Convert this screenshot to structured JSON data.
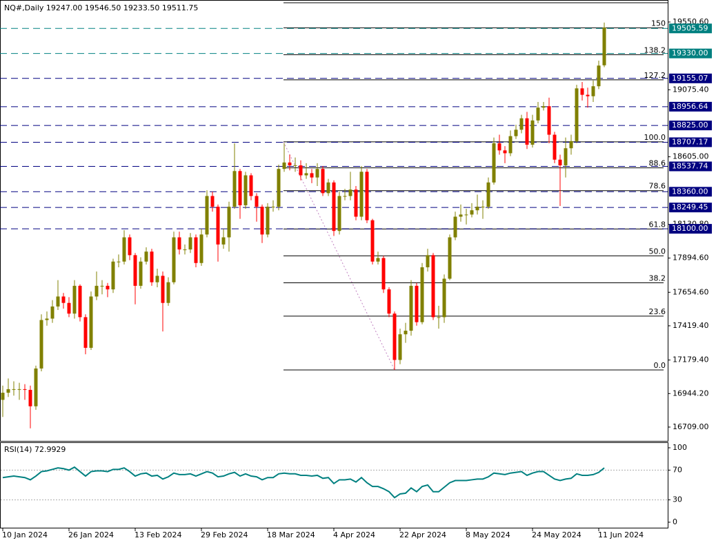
{
  "chart_data": [
    {
      "type": "candlestick",
      "title": "NQ#,Daily  19247.00 19546.50 19233.50 19511.75",
      "categories": [
        "10 Jan 2024",
        null,
        null,
        null,
        null,
        null,
        null,
        null,
        null,
        null,
        null,
        null,
        "26 Jan 2024",
        null,
        null,
        null,
        null,
        null,
        null,
        null,
        null,
        null,
        null,
        null,
        "13 Feb 2024",
        null,
        null,
        null,
        null,
        null,
        null,
        null,
        null,
        null,
        null,
        null,
        "29 Feb 2024",
        null,
        null,
        null,
        null,
        null,
        null,
        null,
        null,
        null,
        null,
        null,
        "18 Mar 2024",
        null,
        null,
        null,
        null,
        null,
        null,
        null,
        null,
        null,
        null,
        null,
        "4 Apr 2024",
        null,
        null,
        null,
        null,
        null,
        null,
        null,
        null,
        null,
        null,
        null,
        "22 Apr 2024",
        null,
        null,
        null,
        null,
        null,
        null,
        null,
        null,
        null,
        null,
        null,
        "8 May 2024",
        null,
        null,
        null,
        null,
        null,
        null,
        null,
        null,
        null,
        null,
        null,
        "24 May 2024",
        null,
        null,
        null,
        null,
        null,
        null,
        null,
        null,
        null,
        null,
        null,
        "11 Jun 2024",
        null
      ],
      "open": [
        16900,
        16950,
        16975,
        16975,
        16975,
        16970,
        16855,
        17120,
        17460,
        17470,
        17555,
        17625,
        17580,
        17505,
        17700,
        17480,
        17265,
        17625,
        17700,
        17700,
        17675,
        17870,
        17870,
        18040,
        17915,
        17700,
        17870,
        17940,
        17725,
        17770,
        17580,
        17725,
        18040,
        17955,
        17955,
        18040,
        17860,
        18060,
        18330,
        18255,
        17990,
        18040,
        18255,
        18505,
        18265,
        18475,
        18330,
        18255,
        18060,
        18255,
        18255,
        18520,
        18565,
        18545,
        18545,
        18475,
        18490,
        18460,
        18520,
        18350,
        18425,
        18085,
        18330,
        18330,
        18375,
        18185,
        18500,
        18160,
        17870,
        17895,
        17675,
        17505,
        17180,
        17360,
        17385,
        17700,
        17445,
        17830,
        17915,
        17480,
        17480,
        17750,
        18040,
        18185,
        18200,
        18200,
        18230,
        18255,
        18255,
        18425,
        18700,
        18650,
        18630,
        18750,
        18795,
        18875,
        18690,
        18860,
        18950,
        18960,
        18760,
        18585,
        18545,
        18665,
        18715,
        19085,
        19040,
        19030,
        19100,
        19247
      ],
      "high": [
        17000,
        17050,
        17030,
        17020,
        17010,
        17000,
        17140,
        17500,
        17520,
        17600,
        17740,
        17650,
        17620,
        17740,
        17710,
        17500,
        17660,
        17800,
        17740,
        17720,
        17890,
        17920,
        18090,
        18060,
        17930,
        17900,
        17970,
        17960,
        17820,
        17800,
        17760,
        18080,
        18080,
        17990,
        18070,
        18060,
        18100,
        18370,
        18360,
        18270,
        18100,
        18290,
        18700,
        18520,
        18500,
        18490,
        18350,
        18270,
        18280,
        18300,
        18550,
        18700,
        18620,
        18600,
        18580,
        18560,
        18520,
        18560,
        18540,
        18450,
        18440,
        18360,
        18380,
        18500,
        18400,
        18540,
        18520,
        18170,
        17940,
        17910,
        17690,
        17520,
        17400,
        17440,
        17740,
        17720,
        17860,
        17960,
        17930,
        17560,
        17780,
        18060,
        18220,
        18270,
        18240,
        18280,
        18340,
        18300,
        18460,
        18740,
        18760,
        18680,
        18790,
        18830,
        18900,
        18920,
        18900,
        18990,
        18990,
        19020,
        18780,
        18620,
        18740,
        18760,
        19110,
        19130,
        19090,
        19140,
        19280,
        19546.5
      ],
      "low": [
        16780,
        16920,
        16930,
        16900,
        16900,
        16700,
        16830,
        17100,
        17420,
        17440,
        17530,
        17540,
        17480,
        17470,
        17450,
        17220,
        17250,
        17600,
        17640,
        17620,
        17650,
        17830,
        17850,
        17880,
        17570,
        17680,
        17850,
        17700,
        17690,
        17380,
        17560,
        17710,
        17920,
        17920,
        17930,
        17830,
        17840,
        18040,
        18220,
        17870,
        17960,
        17940,
        18240,
        18170,
        18240,
        18300,
        18150,
        18000,
        18040,
        18220,
        18230,
        18500,
        18510,
        18500,
        18440,
        18450,
        18420,
        18400,
        18330,
        18330,
        18050,
        18060,
        18300,
        18300,
        18160,
        18160,
        18140,
        17850,
        17850,
        17650,
        17480,
        17110,
        17150,
        17300,
        17350,
        17420,
        17430,
        17800,
        17460,
        17400,
        17440,
        17740,
        18020,
        18150,
        18130,
        18180,
        18200,
        18170,
        18240,
        18410,
        18620,
        18560,
        18610,
        18730,
        18770,
        18660,
        18670,
        18840,
        18930,
        18700,
        18560,
        18260,
        18460,
        18620,
        18700,
        19000,
        18950,
        18990,
        19080,
        19233.5
      ],
      "close": [
        16950,
        16975,
        16975,
        16975,
        16970,
        16855,
        17120,
        17460,
        17470,
        17555,
        17625,
        17580,
        17505,
        17700,
        17480,
        17265,
        17625,
        17700,
        17700,
        17675,
        17870,
        17870,
        18040,
        17915,
        17700,
        17870,
        17940,
        17725,
        17770,
        17580,
        17725,
        18040,
        17955,
        17955,
        18040,
        17860,
        18060,
        18330,
        18255,
        17990,
        18040,
        18255,
        18505,
        18265,
        18475,
        18330,
        18255,
        18060,
        18255,
        18255,
        18520,
        18565,
        18545,
        18545,
        18475,
        18490,
        18460,
        18520,
        18350,
        18425,
        18085,
        18330,
        18330,
        18375,
        18185,
        18500,
        18160,
        17870,
        17895,
        17675,
        17505,
        17180,
        17360,
        17385,
        17700,
        17445,
        17830,
        17915,
        17480,
        17480,
        17750,
        18040,
        18185,
        18200,
        18200,
        18230,
        18255,
        18255,
        18425,
        18700,
        18650,
        18630,
        18750,
        18795,
        18875,
        18690,
        18860,
        18950,
        18960,
        18760,
        18585,
        18545,
        18665,
        18715,
        19085,
        19040,
        19030,
        19100,
        19245,
        19511.75
      ],
      "up_color": "#808000",
      "down_color": "#ff0000",
      "ylim": [
        16612,
        19705
      ],
      "yticks": [
        {
          "value": 19550.6,
          "label": "19550.60"
        },
        {
          "value": 19075.4,
          "label": "19075.40"
        },
        {
          "value": 18605,
          "label": "18605.00"
        },
        {
          "value": 18130.8,
          "label": "18130.80"
        },
        {
          "value": 17894.6,
          "label": "17894.60"
        },
        {
          "value": 17654.6,
          "label": "17654.60"
        },
        {
          "value": 17419.4,
          "label": "17419.40"
        },
        {
          "value": 17179.4,
          "label": "17179.40"
        },
        {
          "value": 16944.2,
          "label": "16944.20"
        },
        {
          "value": 16709,
          "label": "16709.00"
        }
      ],
      "levels": {
        "values": [
          19505.59,
          19330,
          19155.07,
          18956.64,
          18825,
          18707.17,
          18537.74,
          18360,
          18249.45,
          18100
        ],
        "value_labels": [
          "19505.59",
          "19330.00",
          "19155.07",
          "18956.64",
          "18825.00",
          "18707.17",
          "18537.74",
          "18360.00",
          "18249.45",
          "18100.00"
        ],
        "colors": [
          "#008080",
          "#008080",
          "#000080",
          "#000080",
          "#000080",
          "#000080",
          "#000080",
          "#000080",
          "#000080",
          "#000080"
        ]
      },
      "fibonacci": {
        "high": 18710,
        "low": 17110,
        "values": [
          150,
          138.2,
          127.2,
          100,
          88.6,
          78.6,
          61.8,
          50,
          38.2,
          23.6,
          0
        ],
        "value_labels": [
          "150",
          "138.2",
          "127.2",
          "100.0",
          "88.6",
          "78.6",
          "61.8",
          "50.0",
          "38.2",
          "23.6",
          "0.0"
        ]
      }
    },
    {
      "type": "line",
      "title": "RSI(14) 72.9929",
      "color": "#008080",
      "values": [
        60,
        61,
        62,
        61,
        60,
        57,
        62,
        68,
        69,
        71,
        73,
        72,
        70,
        74,
        68,
        62,
        68,
        69,
        69,
        68,
        71,
        71,
        73,
        68,
        62,
        65,
        66,
        62,
        63,
        58,
        61,
        66,
        64,
        64,
        65,
        62,
        65,
        68,
        66,
        61,
        62,
        65,
        67,
        62,
        65,
        62,
        61,
        57,
        60,
        60,
        65,
        66,
        65,
        65,
        63,
        63,
        62,
        63,
        59,
        60,
        52,
        57,
        57,
        58,
        54,
        60,
        53,
        48,
        48,
        45,
        41,
        33,
        38,
        39,
        46,
        41,
        48,
        50,
        41,
        41,
        47,
        53,
        56,
        56,
        56,
        57,
        58,
        58,
        61,
        66,
        65,
        64,
        66,
        67,
        68,
        63,
        66,
        68,
        68,
        63,
        58,
        56,
        58,
        59,
        65,
        63,
        63,
        64,
        67,
        72.9929
      ],
      "ylim": [
        0,
        100
      ],
      "yticks": [
        100,
        70,
        30,
        0
      ]
    }
  ]
}
